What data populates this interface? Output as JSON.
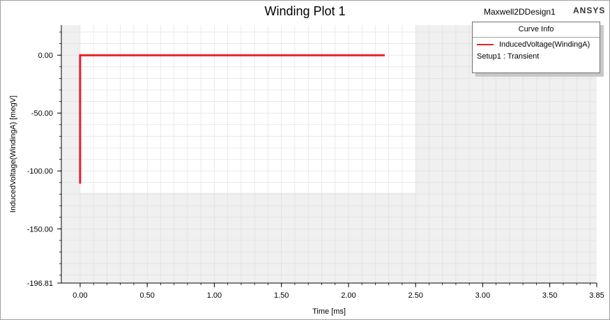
{
  "window": {
    "title": "Winding Plot 1",
    "design": "Maxwell2DDesign1",
    "brand": "ANSYS"
  },
  "legend": {
    "title": "Curve Info",
    "series_name": "InducedVoltage(WindingA)",
    "setup": "Setup1 : Transient"
  },
  "colors": {
    "series": "#e8202a",
    "background": "#f0f0f0",
    "data_region": "#ffffff",
    "grid": "#dcdcdc"
  },
  "chart_data": {
    "type": "line",
    "title": "Winding Plot 1",
    "xlabel": "Time [ms]",
    "ylabel": "InducedVoltage(WindingA) [megV]",
    "xlim": [
      -0.14,
      3.85
    ],
    "ylim": [
      -196.81,
      26
    ],
    "x_ticks": [
      0,
      0.5,
      1.0,
      1.5,
      2.0,
      2.5,
      3.0,
      3.5,
      3.85
    ],
    "x_tick_labels": [
      "0.00",
      "0.50",
      "1.00",
      "1.50",
      "2.00",
      "2.50",
      "3.00",
      "3.50",
      "3.85"
    ],
    "y_ticks": [
      0,
      -50,
      -100,
      -150,
      -196.81
    ],
    "y_tick_labels": [
      "0.00",
      "-50.00",
      "-100.00",
      "-150.00",
      "-196.81"
    ],
    "grid": true,
    "legend_position": "top-right",
    "series": [
      {
        "name": "InducedVoltage(WindingA)",
        "x": [
          0.0,
          0.0,
          2.27
        ],
        "y": [
          -111.0,
          0.0,
          0.0
        ]
      }
    ]
  }
}
